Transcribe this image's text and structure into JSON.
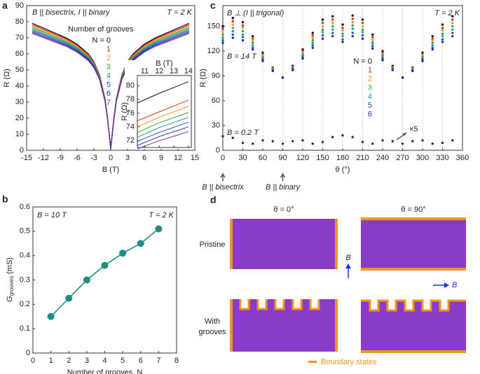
{
  "chart_data": [
    {
      "panel": "a",
      "type": "line",
      "xlabel": "B (T)",
      "ylabel": "R (Ω)",
      "annotation_left": "B || bisectrix, I || binary",
      "annotation_right": "T = 2 K",
      "legend_title": "Number of grooves",
      "xlim": [
        -15,
        15
      ],
      "xticks": [
        -15,
        -12,
        -9,
        -6,
        -3,
        0,
        3,
        6,
        9,
        12,
        15
      ],
      "ylim": [
        0,
        90
      ],
      "yticks": [
        0,
        10,
        20,
        30,
        40,
        50,
        60,
        70,
        80,
        90
      ],
      "x": [
        -14,
        -12,
        -10,
        -8,
        -6,
        -4,
        -3,
        -2,
        -1,
        -0.5,
        0,
        0.5,
        1,
        2,
        3,
        4,
        6,
        8,
        10,
        12,
        14
      ],
      "series": [
        {
          "name": "N = 0",
          "color": "#111111",
          "values": [
            79,
            76,
            73,
            70,
            66,
            60,
            55,
            47,
            32,
            18,
            1,
            18,
            32,
            47,
            55,
            60,
            66,
            70,
            73,
            76,
            79
          ]
        },
        {
          "name": "1",
          "color": "#e5261f",
          "values": [
            78.1,
            75.2,
            72.2,
            69.3,
            65.3,
            59.4,
            54.5,
            46.6,
            31.8,
            17.9,
            1,
            17.9,
            31.8,
            46.6,
            54.5,
            59.4,
            65.3,
            69.3,
            72.2,
            75.2,
            78.1
          ]
        },
        {
          "name": "2",
          "color": "#f39320",
          "values": [
            77.2,
            74.3,
            71.4,
            68.5,
            64.6,
            58.8,
            54,
            46.2,
            31.5,
            17.8,
            1,
            17.8,
            31.5,
            46.2,
            54,
            58.8,
            64.6,
            68.5,
            71.4,
            74.3,
            77.2
          ]
        },
        {
          "name": "3",
          "color": "#3aa535",
          "values": [
            76.3,
            73.5,
            70.6,
            67.8,
            63.9,
            58.2,
            53.5,
            45.8,
            31.3,
            17.7,
            1,
            17.7,
            31.3,
            45.8,
            53.5,
            58.2,
            63.9,
            67.8,
            70.6,
            73.5,
            76.3
          ]
        },
        {
          "name": "4",
          "color": "#1a9d95",
          "values": [
            75.4,
            72.6,
            69.8,
            67,
            63.2,
            57.6,
            53,
            45.4,
            31,
            17.6,
            1,
            17.6,
            31,
            45.4,
            53,
            57.6,
            63.2,
            67,
            69.8,
            72.6,
            75.4
          ]
        },
        {
          "name": "5",
          "color": "#1f55c6",
          "values": [
            74.5,
            71.8,
            69,
            66.3,
            62.5,
            57,
            52.5,
            45,
            30.8,
            17.5,
            1,
            17.5,
            30.8,
            45,
            52.5,
            57,
            62.5,
            66.3,
            69,
            71.8,
            74.5
          ]
        },
        {
          "name": "6",
          "color": "#2a2a98",
          "values": [
            73.6,
            70.9,
            68.2,
            65.5,
            61.8,
            56.4,
            52,
            44.6,
            30.5,
            17.4,
            1,
            17.4,
            30.5,
            44.6,
            52,
            56.4,
            61.8,
            65.5,
            68.2,
            70.9,
            73.6
          ]
        },
        {
          "name": "7",
          "color": "#7b2c9c",
          "values": [
            72.7,
            70.1,
            67.4,
            64.8,
            61.1,
            55.8,
            51.5,
            44.2,
            30.3,
            17.3,
            1,
            17.3,
            30.3,
            44.2,
            51.5,
            55.8,
            61.1,
            64.8,
            67.4,
            70.1,
            72.7
          ]
        }
      ],
      "inset": {
        "xlabel": "B (T)",
        "ylabel": "R (Ω)",
        "xlim": [
          10.5,
          14.2
        ],
        "xticks": [
          11,
          12,
          13,
          14
        ],
        "ylim": [
          71,
          81.5
        ],
        "yticks": [
          72,
          74,
          76,
          78,
          80
        ],
        "x": [
          10.5,
          12,
          14
        ],
        "series": [
          {
            "values": [
              77.5,
              78.9,
              80.6
            ]
          },
          {
            "values": [
              74.9,
              76.2,
              77.9
            ]
          },
          {
            "values": [
              74.0,
              75.4,
              77.0
            ]
          },
          {
            "values": [
              73.2,
              74.6,
              76.1
            ]
          },
          {
            "values": [
              72.5,
              73.9,
              75.4
            ]
          },
          {
            "values": [
              71.9,
              73.2,
              74.7
            ]
          },
          {
            "values": [
              71.3,
              72.6,
              74.0
            ]
          },
          {
            "values": [
              70.8,
              72.0,
              73.3
            ]
          }
        ]
      }
    },
    {
      "panel": "b",
      "type": "line",
      "marker": true,
      "xlabel": "Number of grooves, N",
      "ylabel": {
        "symbol": "G",
        "subscript": "grooves",
        "unit": " (mS)"
      },
      "annotation_left": "B = 10 T",
      "annotation_right": "T = 2 K",
      "xlim": [
        0,
        8
      ],
      "xticks": [
        0,
        1,
        2,
        3,
        4,
        5,
        6,
        7,
        8
      ],
      "ylim": [
        0,
        0.6
      ],
      "yticks": [
        0,
        0.1,
        0.2,
        0.3,
        0.4,
        0.5,
        0.6
      ],
      "x": [
        1,
        2,
        3,
        4,
        5,
        6,
        7
      ],
      "color": "#1f8c86",
      "values": [
        0.15,
        0.225,
        0.3,
        0.36,
        0.41,
        0.45,
        0.51
      ]
    },
    {
      "panel": "c",
      "type": "scatter",
      "xlabel": "θ (°)",
      "ylabel": "R (Ω)",
      "grid": true,
      "annotation_left": "B ⊥ (I || trigonal)",
      "annotation_right": "T = 2 K",
      "high_field_label": "B = 14 T",
      "low_field_label": "B = 0.2 T",
      "scale_note": "×5",
      "xlim": [
        0,
        360
      ],
      "xticks": [
        0,
        30,
        60,
        90,
        120,
        150,
        180,
        210,
        240,
        270,
        300,
        330,
        360
      ],
      "ylim": [
        0,
        175
      ],
      "yticks": [
        0,
        30,
        60,
        90,
        120,
        150
      ],
      "x": [
        0,
        15,
        30,
        45,
        60,
        75,
        90,
        105,
        120,
        135,
        150,
        165,
        180,
        195,
        210,
        225,
        240,
        255,
        270,
        285,
        300,
        315,
        330,
        345
      ],
      "series": [
        {
          "name": "N = 0",
          "color": "#111111",
          "values": [
            150,
            160,
            155,
            138,
            118,
            100,
            88,
            102,
            122,
            142,
            158,
            162,
            152,
            163,
            158,
            140,
            120,
            102,
            88,
            100,
            118,
            138,
            152,
            162
          ]
        },
        {
          "name": "1",
          "color": "#e5261f",
          "values": [
            147,
            156,
            151,
            135,
            116,
            99,
            88,
            101,
            120,
            139,
            154,
            158,
            148,
            159,
            154,
            137,
            118,
            101,
            88,
            99,
            116,
            135,
            148,
            158
          ]
        },
        {
          "name": "2",
          "color": "#f39320",
          "values": [
            143,
            152,
            148,
            133,
            115,
            99,
            88,
            100,
            118,
            136,
            150,
            154,
            145,
            155,
            150,
            134,
            116,
            100,
            88,
            99,
            115,
            133,
            145,
            154
          ]
        },
        {
          "name": "3",
          "color": "#3aa535",
          "values": [
            140,
            148,
            144,
            130,
            113,
            98,
            88,
            100,
            116,
            133,
            146,
            150,
            141,
            151,
            146,
            131,
            115,
            100,
            88,
            98,
            113,
            130,
            141,
            150
          ]
        },
        {
          "name": "4",
          "color": "#1a9d95",
          "values": [
            136,
            144,
            140,
            127,
            111,
            97,
            88,
            99,
            115,
            130,
            143,
            146,
            138,
            147,
            143,
            129,
            113,
            99,
            88,
            97,
            111,
            127,
            138,
            146
          ]
        },
        {
          "name": "5",
          "color": "#1f55c6",
          "values": [
            133,
            140,
            137,
            124,
            110,
            97,
            88,
            98,
            113,
            127,
            139,
            142,
            134,
            142,
            139,
            126,
            111,
            98,
            88,
            97,
            110,
            124,
            134,
            142
          ]
        },
        {
          "name": "6",
          "color": "#2a2a98",
          "values": [
            130,
            136,
            133,
            122,
            108,
            96,
            88,
            97,
            111,
            124,
            135,
            138,
            131,
            138,
            135,
            123,
            109,
            97,
            88,
            96,
            108,
            122,
            131,
            138
          ]
        }
      ],
      "low_field": {
        "color": "#1c2a80",
        "values": [
          17,
          15,
          9,
          8,
          12,
          11,
          8,
          11,
          12,
          8,
          10,
          16,
          18,
          16,
          10,
          8,
          12,
          11,
          8,
          11,
          12,
          8,
          9,
          12
        ]
      },
      "markers": [
        {
          "x": 0,
          "label": "B || bisectrix"
        },
        {
          "x": 90,
          "label": "B || binary"
        }
      ]
    }
  ],
  "diagram": {
    "panel": "d",
    "columns": [
      "θ = 0°",
      "θ = 90°"
    ],
    "rows": [
      "Pristine",
      [
        "With",
        "grooves"
      ]
    ],
    "field_label": "B",
    "legend": "Boundary states"
  }
}
